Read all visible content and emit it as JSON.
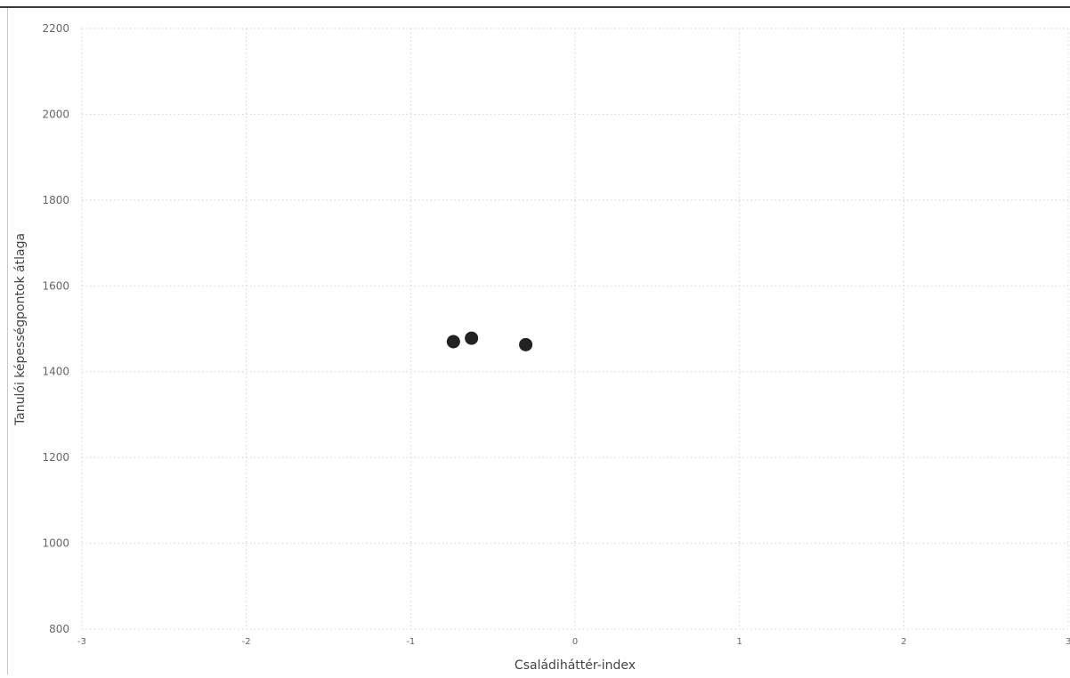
{
  "chart_data": {
    "type": "scatter",
    "title": "",
    "xlabel": "Családiháttér-index",
    "ylabel": "Tanulói képességpontok átlaga",
    "xlim": [
      -3,
      3
    ],
    "ylim": [
      800,
      2200
    ],
    "x_ticks": [
      "-3",
      "-2",
      "-1",
      "0",
      "1",
      "2",
      "3"
    ],
    "y_ticks": [
      "800",
      "1000",
      "1200",
      "1400",
      "1600",
      "1800",
      "2000",
      "2200"
    ],
    "grid": true,
    "series": [
      {
        "points": [
          {
            "x": -0.74,
            "y": 1470
          },
          {
            "x": -0.63,
            "y": 1478
          },
          {
            "x": -0.3,
            "y": 1463
          }
        ]
      }
    ],
    "colors": {
      "point": "#222222",
      "grid": "#d0d0d0",
      "tick_text": "#666666",
      "label_text": "#444444"
    }
  }
}
